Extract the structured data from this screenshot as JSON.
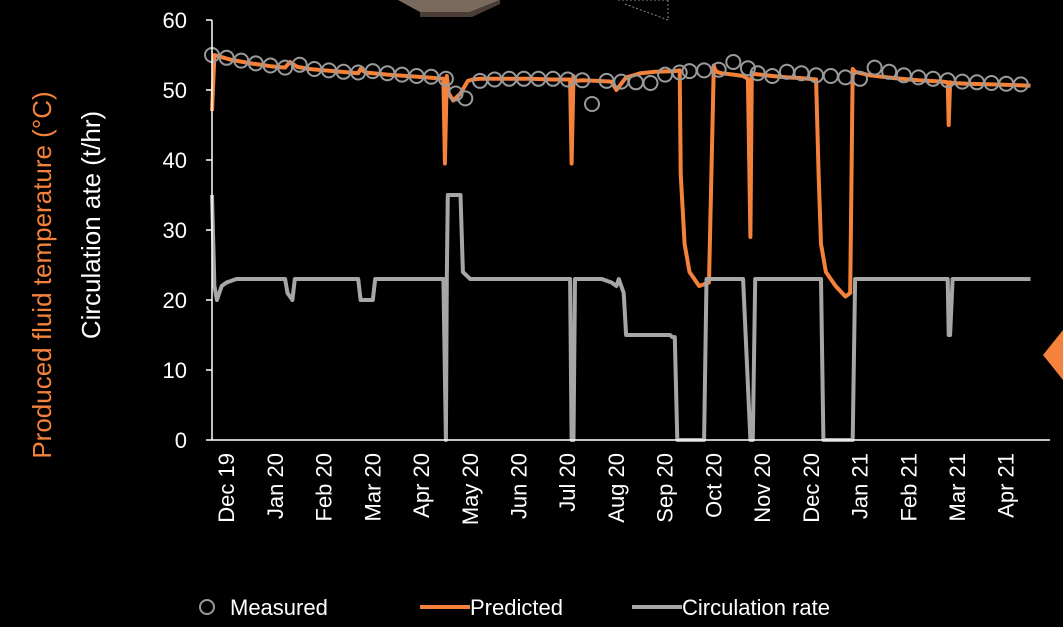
{
  "chart_data": {
    "type": "line",
    "ylabel_temperature": "Produced fluid temperature (°C)",
    "ylabel_rate": "Circulation ate (t/hr)",
    "ylim": [
      0,
      60
    ],
    "yticks": [
      "0",
      "10",
      "20",
      "30",
      "40",
      "50",
      "60"
    ],
    "xlim": [
      0,
      17.2
    ],
    "x_tick_labels": [
      "Dec 19",
      "Jan 20",
      "Feb 20",
      "Mar 20",
      "Apr 20",
      "May 20",
      "Jun 20",
      "Jul 20",
      "Aug 20",
      "Sep 20",
      "Oct 20",
      "Nov 20",
      "Dec 20",
      "Jan 21",
      "Feb 21",
      "Mar 21",
      "Apr 21"
    ],
    "legend_position": "bottom",
    "colors": {
      "predicted": "#f5823b",
      "measured": "#9a9a9a",
      "circulation": "#a6a6a6",
      "temperature_label": "#f5823b"
    },
    "series": [
      {
        "name": "Measured",
        "style": "markers",
        "x": [
          0.0,
          0.3,
          0.6,
          0.9,
          1.2,
          1.5,
          1.8,
          2.1,
          2.4,
          2.7,
          3.0,
          3.3,
          3.6,
          3.9,
          4.2,
          4.5,
          4.8,
          5.0,
          5.2,
          5.5,
          5.8,
          6.1,
          6.4,
          6.7,
          7.0,
          7.3,
          7.6,
          7.8,
          8.1,
          8.4,
          8.7,
          9.0,
          9.3,
          9.6,
          9.8,
          10.1,
          10.4,
          10.7,
          11.0,
          11.2,
          11.5,
          11.8,
          12.1,
          12.4,
          12.7,
          13.0,
          13.3,
          13.6,
          13.9,
          14.2,
          14.5,
          14.8,
          15.1,
          15.4,
          15.7,
          16.0,
          16.3,
          16.6
        ],
        "y": [
          55,
          54.6,
          54.2,
          53.8,
          53.5,
          53.2,
          53.6,
          53,
          52.8,
          52.6,
          52.5,
          52.7,
          52.4,
          52.2,
          52,
          51.9,
          51.6,
          49.5,
          48.8,
          51.3,
          51.5,
          51.6,
          51.6,
          51.6,
          51.6,
          51.5,
          51.4,
          48,
          51.3,
          51.2,
          51.1,
          51.0,
          52.2,
          52.5,
          52.7,
          52.8,
          52.9,
          54,
          53.1,
          52.4,
          52,
          52.6,
          52.4,
          52.1,
          52.0,
          51.8,
          51.6,
          53.2,
          52.6,
          52.1,
          51.8,
          51.6,
          51.4,
          51.2,
          51.1,
          51.0,
          50.9,
          50.8
        ]
      },
      {
        "name": "Predicted",
        "style": "line",
        "x": [
          0.0,
          0.05,
          0.15,
          0.4,
          0.8,
          1.2,
          1.5,
          1.6,
          1.75,
          2.0,
          2.5,
          3.0,
          3.05,
          3.15,
          3.3,
          3.6,
          4.0,
          4.4,
          4.75,
          4.78,
          4.82,
          4.86,
          4.95,
          5.1,
          5.25,
          5.35,
          5.5,
          6.0,
          6.5,
          7.0,
          7.35,
          7.38,
          7.42,
          7.47,
          7.6,
          7.9,
          8.2,
          8.3,
          8.5,
          8.8,
          9.1,
          9.5,
          9.6,
          9.62,
          9.7,
          9.8,
          10.0,
          10.2,
          10.3,
          10.32,
          10.36,
          10.45,
          10.7,
          10.9,
          11.0,
          11.05,
          11.08,
          11.12,
          11.25,
          11.5,
          11.8,
          12.1,
          12.4,
          12.45,
          12.5,
          12.6,
          12.8,
          13.0,
          13.1,
          13.15,
          13.2,
          13.5,
          14.0,
          14.5,
          15.0,
          15.1,
          15.12,
          15.15,
          15.2,
          15.5,
          16.0,
          16.5,
          16.8
        ],
        "y": [
          47,
          55,
          54.8,
          54.3,
          53.8,
          53.4,
          53.2,
          54,
          53.3,
          53,
          52.7,
          52.4,
          53,
          52.5,
          52.4,
          52.2,
          52,
          51.8,
          51.6,
          39.5,
          52,
          49.5,
          48.5,
          49.5,
          51.3,
          51.5,
          51.6,
          51.6,
          51.6,
          51.5,
          51.5,
          39.5,
          52,
          51.3,
          51.4,
          51.3,
          51.2,
          50.0,
          51.8,
          52.4,
          52.6,
          52.7,
          52.8,
          38,
          28,
          24,
          22,
          22.5,
          53.5,
          53,
          52.6,
          52.4,
          52.2,
          52,
          51.6,
          29,
          52.5,
          52.3,
          52.2,
          52,
          51.8,
          51.7,
          51.5,
          38,
          28,
          24,
          22,
          20.5,
          21,
          53,
          52.6,
          52.1,
          51.7,
          51.4,
          51.2,
          51.1,
          45,
          51.1,
          51,
          50.9,
          50.8,
          50.7,
          50.6
        ]
      },
      {
        "name": "Circulation rate",
        "style": "step",
        "x": [
          0.0,
          0.05,
          0.1,
          0.15,
          0.2,
          0.3,
          0.5,
          1.5,
          1.55,
          1.65,
          1.7,
          3.0,
          3.05,
          3.3,
          3.35,
          4.6,
          4.65,
          4.7,
          4.75,
          4.8,
          4.82,
          4.84,
          4.85,
          5.0,
          5.1,
          5.15,
          5.3,
          7.35,
          7.38,
          7.42,
          7.45,
          8.0,
          8.2,
          8.3,
          8.35,
          8.45,
          8.5,
          9.4,
          9.45,
          9.5,
          9.55,
          9.65,
          9.7,
          10.1,
          10.15,
          10.2,
          10.9,
          11.05,
          11.1,
          11.15,
          12.5,
          12.55,
          12.6,
          13.1,
          13.15,
          13.2,
          15.1,
          15.12,
          15.15,
          15.2,
          16.8
        ],
        "y": [
          35,
          22,
          20,
          21,
          22,
          22.5,
          23,
          23,
          21,
          20,
          23,
          23,
          20,
          20,
          23,
          23,
          23,
          23,
          23,
          0,
          23,
          35,
          35,
          35,
          35,
          24,
          23,
          23,
          0,
          0,
          23,
          23,
          22.5,
          22,
          23,
          21,
          15,
          15,
          14.7,
          14.7,
          0,
          0,
          0,
          0,
          23,
          23,
          23,
          0,
          0,
          23,
          23,
          0,
          0,
          0,
          0,
          23,
          23,
          15,
          15,
          23,
          23
        ]
      }
    ]
  },
  "legend": {
    "measured_label": "Measured",
    "predicted_label": "Predicted",
    "circulation_label": "Circulation rate"
  }
}
